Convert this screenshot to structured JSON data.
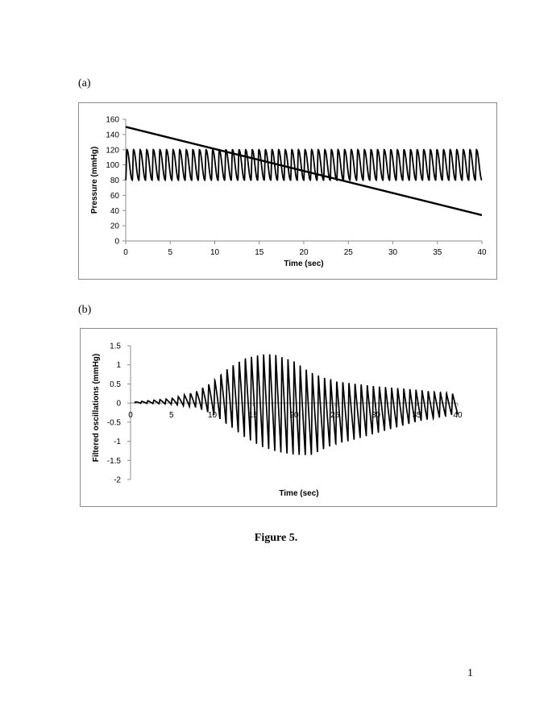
{
  "page": {
    "panel_a_label": "(a)",
    "panel_b_label": "(b)",
    "caption": "Figure 5.",
    "page_number": "1"
  },
  "chart_data": [
    {
      "panel": "(a)",
      "type": "line",
      "title": "",
      "xlabel": "Time (sec)",
      "ylabel": "Pressure (mmHg)",
      "xlim": [
        0,
        40
      ],
      "ylim": [
        0,
        160
      ],
      "x_ticks": [
        0,
        5,
        10,
        15,
        20,
        25,
        30,
        35,
        40
      ],
      "y_ticks": [
        0,
        20,
        40,
        60,
        80,
        100,
        120,
        140,
        160
      ],
      "grid": false,
      "legend": "none",
      "series": [
        {
          "kind": "linear",
          "x": [
            0,
            40
          ],
          "y": [
            150,
            34
          ]
        },
        {
          "kind": "oscillation",
          "x_start": 0,
          "x_end": 40,
          "cycles": 54,
          "min": 80,
          "max": 120
        }
      ],
      "color": "#000000"
    },
    {
      "panel": "(b)",
      "type": "line",
      "title": "",
      "xlabel": "Time (sec)",
      "ylabel": "Filtered oscillations (mmHg)",
      "xlim": [
        0,
        40
      ],
      "ylim": [
        -2,
        1.5
      ],
      "x_ticks": [
        0,
        5,
        10,
        15,
        20,
        25,
        30,
        35,
        40
      ],
      "y_ticks": [
        1.5,
        1,
        0.5,
        0,
        -0.5,
        -1,
        -1.5,
        -2
      ],
      "grid": false,
      "legend": "none",
      "series": [
        {
          "kind": "oscillation",
          "x_start": 0.5,
          "x_end": 40,
          "cycles": 53,
          "upper_envelope": {
            "x": [
              0.5,
              5,
              8,
              10,
              12,
              14,
              16,
              17.5,
              20,
              22,
              25,
              30,
              35,
              39.5
            ],
            "y": [
              0.03,
              0.12,
              0.3,
              0.55,
              0.95,
              1.2,
              1.3,
              1.3,
              1.1,
              0.8,
              0.6,
              0.45,
              0.35,
              0.25
            ]
          },
          "lower_envelope": {
            "x": [
              0.5,
              5,
              8,
              10,
              12,
              14,
              16,
              18,
              20,
              22,
              25,
              30,
              35,
              39.5
            ],
            "y": [
              0,
              -0.03,
              -0.12,
              -0.3,
              -0.6,
              -0.9,
              -1.15,
              -1.3,
              -1.38,
              -1.4,
              -1.1,
              -0.8,
              -0.5,
              -0.3
            ]
          }
        }
      ],
      "color": "#000000"
    }
  ]
}
